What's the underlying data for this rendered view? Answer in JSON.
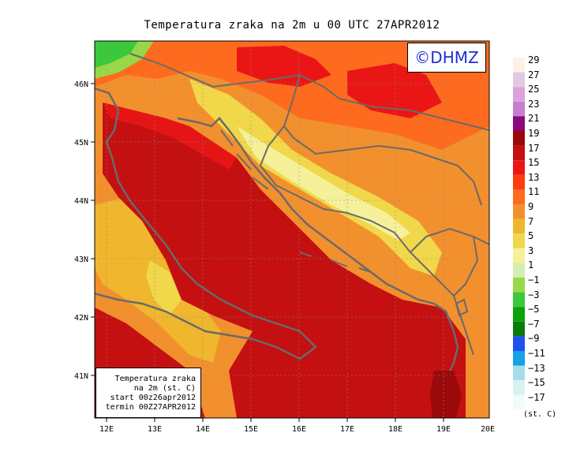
{
  "title": "Temperatura zraka na 2m u 00 UTC 27APR2012",
  "logo": "©DHMZ",
  "info_box": {
    "line1": "Temperatura zraka",
    "line2": "na 2m (st. C)",
    "line3": "start 00z26apr2012",
    "line4": "termin 00Z27APR2012"
  },
  "axes": {
    "lat_labels": [
      "46N",
      "45N",
      "44N",
      "43N",
      "42N",
      "41N"
    ],
    "lon_labels": [
      "12E",
      "13E",
      "14E",
      "15E",
      "16E",
      "17E",
      "18E",
      "19E",
      "20E"
    ]
  },
  "legend": {
    "unit": "(st. C)",
    "items": [
      {
        "label": "29",
        "color": "#fdf0e4"
      },
      {
        "label": "27",
        "color": "#e2c9e2"
      },
      {
        "label": "25",
        "color": "#dba3dc"
      },
      {
        "label": "23",
        "color": "#c77dd0"
      },
      {
        "label": "21",
        "color": "#8a0a7e"
      },
      {
        "label": "19",
        "color": "#9a0a0a"
      },
      {
        "label": "17",
        "color": "#c41010"
      },
      {
        "label": "15",
        "color": "#ea1616"
      },
      {
        "label": "13",
        "color": "#ff3b10"
      },
      {
        "label": "11",
        "color": "#ff6b1e"
      },
      {
        "label": "9",
        "color": "#f2902e"
      },
      {
        "label": "7",
        "color": "#f0b62e"
      },
      {
        "label": "5",
        "color": "#f0d84a"
      },
      {
        "label": "3",
        "color": "#f5f09a"
      },
      {
        "label": "1",
        "color": "#d4eeb0"
      },
      {
        "label": "−1",
        "color": "#98d848"
      },
      {
        "label": "−3",
        "color": "#3cc83c"
      },
      {
        "label": "−5",
        "color": "#0aa30a"
      },
      {
        "label": "−7",
        "color": "#0c7a0c"
      },
      {
        "label": "−9",
        "color": "#2050f0"
      },
      {
        "label": "−11",
        "color": "#18a0e8"
      },
      {
        "label": "−13",
        "color": "#a8dce8"
      },
      {
        "label": "−15",
        "color": "#d8f2f2"
      },
      {
        "label": "−17",
        "color": "#f2fbfb"
      }
    ]
  }
}
